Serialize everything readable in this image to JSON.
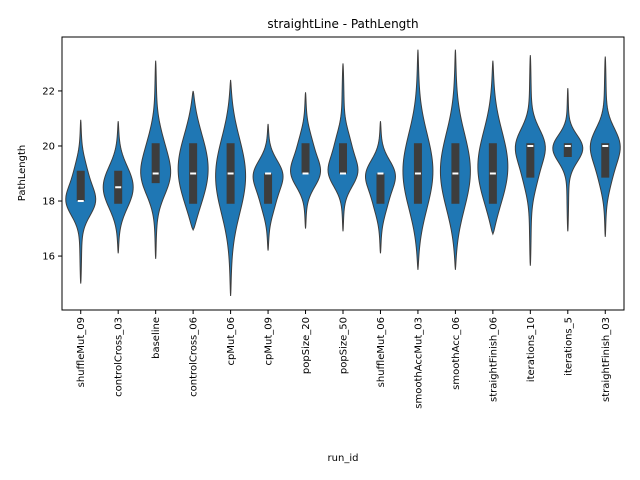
{
  "chart_data": {
    "type": "violin",
    "title": "straightLine - PathLength",
    "x_label": "run_id",
    "y_label": "PathLength",
    "categories": [
      "shuffleMut_09",
      "controlCross_03",
      "baseline",
      "controlCross_06",
      "cpMut_06",
      "cpMut_09",
      "popSize_20",
      "popSize_50",
      "shuffleMut_06",
      "smoothAccMut_03",
      "smoothAcc_06",
      "straightFinish_06",
      "iterations_10",
      "iterations_5",
      "straightFinish_03"
    ],
    "min": [
      15.0,
      16.1,
      15.9,
      16.95,
      14.55,
      16.2,
      17.0,
      16.9,
      16.1,
      15.5,
      15.5,
      16.8,
      15.65,
      16.9,
      16.7
    ],
    "q1": [
      18.0,
      17.9,
      18.65,
      17.9,
      17.9,
      17.9,
      19.0,
      19.0,
      17.9,
      17.9,
      17.9,
      17.9,
      18.85,
      19.6,
      18.85
    ],
    "median": [
      18.0,
      18.5,
      19.0,
      19.0,
      19.0,
      19.0,
      19.0,
      19.0,
      19.0,
      19.0,
      19.0,
      19.0,
      20.0,
      20.0,
      20.0
    ],
    "q3": [
      19.1,
      19.1,
      20.1,
      20.1,
      20.1,
      19.0,
      20.1,
      20.1,
      19.0,
      20.1,
      20.1,
      20.1,
      20.1,
      20.1,
      20.1
    ],
    "max": [
      20.95,
      20.9,
      23.1,
      22.0,
      22.4,
      20.8,
      21.95,
      23.0,
      20.9,
      23.5,
      23.5,
      23.1,
      23.3,
      22.1,
      23.25
    ],
    "color": "#1f77b4",
    "ylim": [
      14.04,
      23.96
    ],
    "yticks": [
      16,
      18,
      20,
      22
    ]
  }
}
